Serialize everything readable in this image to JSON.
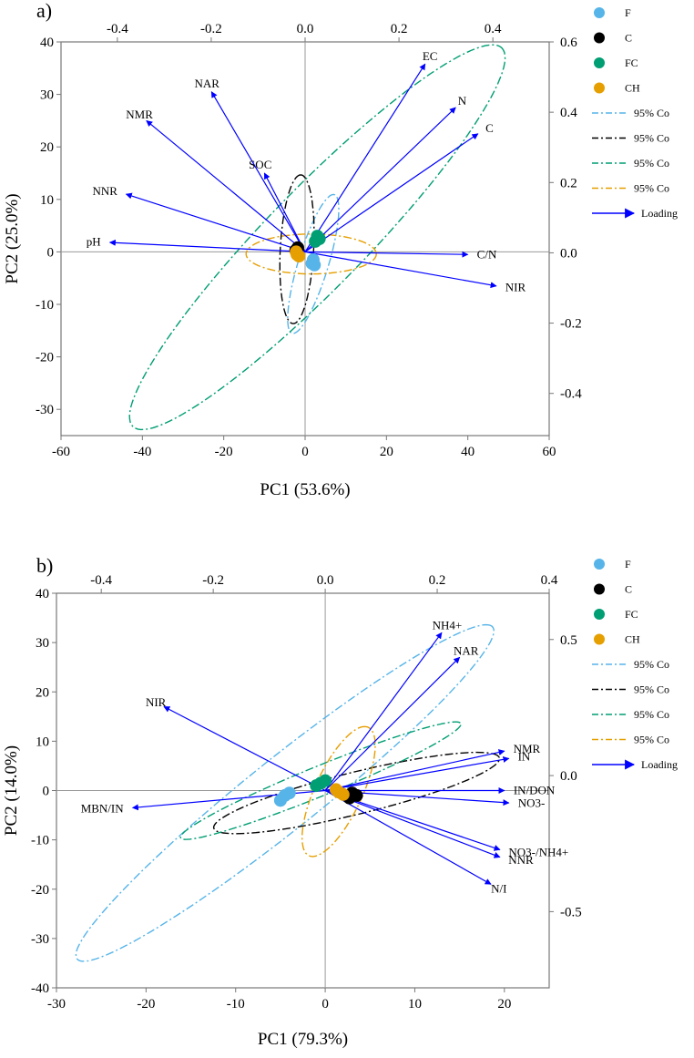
{
  "chart_data": [
    {
      "type": "scatter",
      "panel_label": "a)",
      "xlabel": "PC1 (53.6%)",
      "ylabel": "PC2 (25.0%)",
      "xlim": [
        -60,
        60
      ],
      "ylim": [
        -35,
        40
      ],
      "xticks": [
        -60,
        -40,
        -20,
        0,
        20,
        40,
        60
      ],
      "yticks": [
        -30,
        -20,
        -10,
        0,
        10,
        20,
        30,
        40
      ],
      "x2lim": [
        -0.52,
        0.52
      ],
      "x2ticks": [
        "-0.4",
        "-0.2",
        "0.0",
        "0.2",
        "0.4"
      ],
      "x2tick_values": [
        -0.4,
        -0.2,
        0.0,
        0.2,
        0.4
      ],
      "y2lim": [
        -0.52,
        0.6
      ],
      "y2ticks": [
        "-0.4",
        "-0.2",
        "0.0",
        "0.2",
        "0.4",
        "0.6"
      ],
      "y2tick_values": [
        -0.4,
        -0.2,
        0.0,
        0.2,
        0.4,
        0.6
      ],
      "legend": [
        {
          "label": "F",
          "kind": "dot",
          "color": "#56b4e9"
        },
        {
          "label": "C",
          "kind": "dot",
          "color": "#000000"
        },
        {
          "label": "FC",
          "kind": "dot",
          "color": "#009e73"
        },
        {
          "label": "CH",
          "kind": "dot",
          "color": "#e69f00"
        },
        {
          "label": "95% Co",
          "kind": "dashdot",
          "color": "#56b4e9"
        },
        {
          "label": "95% Co",
          "kind": "dashdot",
          "color": "#000000"
        },
        {
          "label": "95% Co",
          "kind": "dashdot",
          "color": "#009e73"
        },
        {
          "label": "95% Co",
          "kind": "dashdot",
          "color": "#e69f00"
        },
        {
          "label": "Loading",
          "kind": "arrow",
          "color": "#0000ff"
        }
      ],
      "groups": [
        {
          "name": "F",
          "color": "#56b4e9",
          "points": [
            [
              2,
              -1.5
            ],
            [
              2.3,
              -2.5
            ],
            [
              1.7,
              -2.2
            ]
          ]
        },
        {
          "name": "C",
          "color": "#000000",
          "points": [
            [
              -2,
              0.5
            ],
            [
              -2.3,
              0.3
            ],
            [
              -1.8,
              0.8
            ]
          ]
        },
        {
          "name": "FC",
          "color": "#009e73",
          "points": [
            [
              2.5,
              2
            ],
            [
              3,
              3
            ],
            [
              3.5,
              2.5
            ]
          ]
        },
        {
          "name": "CH",
          "color": "#e69f00",
          "points": [
            [
              -2,
              -0.5
            ],
            [
              -1.5,
              -0.8
            ],
            [
              -2.2,
              0
            ]
          ]
        }
      ],
      "ellipses": [
        {
          "group": "F",
          "color": "#56b4e9",
          "cx": 2,
          "cy": -2.3,
          "rx": 14.2,
          "ry": 3.6,
          "angle": 68
        },
        {
          "group": "C",
          "color": "#000000",
          "cx": -2,
          "cy": 0.5,
          "rx": 14.2,
          "ry": 4.1,
          "angle": 86
        },
        {
          "group": "FC",
          "color": "#009e73",
          "cx": 3,
          "cy": 2.8,
          "rx": 58,
          "ry": 10.5,
          "angle": 38
        },
        {
          "group": "CH",
          "color": "#e69f00",
          "cx": 1.5,
          "cy": -0.4,
          "rx": 16,
          "ry": 3.8,
          "angle": 0
        }
      ],
      "loadings": [
        {
          "label": "EC",
          "x": 29.5,
          "y": 35.8
        },
        {
          "label": "N",
          "x": 37,
          "y": 27.5
        },
        {
          "label": "C",
          "x": 42.5,
          "y": 22.5
        },
        {
          "label": "C/N",
          "x": 40,
          "y": -0.5
        },
        {
          "label": "NIR",
          "x": 47,
          "y": -6.5
        },
        {
          "label": "NAR",
          "x": -23,
          "y": 30.5
        },
        {
          "label": "NMR",
          "x": -39,
          "y": 25
        },
        {
          "label": "SOC",
          "x": -10,
          "y": 15
        },
        {
          "label": "NNR",
          "x": -44,
          "y": 11
        },
        {
          "label": "pH",
          "x": -48,
          "y": 1.8
        }
      ]
    },
    {
      "type": "scatter",
      "panel_label": "b)",
      "xlabel": "PC1 (79.3%)",
      "ylabel": "PC2 (14.0%)",
      "xlim": [
        -30,
        25
      ],
      "ylim": [
        -40,
        40
      ],
      "xticks": [
        -30,
        -20,
        -10,
        0,
        10,
        20
      ],
      "yticks": [
        -40,
        -30,
        -20,
        -10,
        0,
        10,
        20,
        30,
        40
      ],
      "x2lim": [
        -0.48,
        0.4
      ],
      "x2ticks": [
        "-0.4",
        "-0.2",
        "0.0",
        "0.2",
        "0.4"
      ],
      "x2tick_values": [
        -0.4,
        -0.2,
        0.0,
        0.2,
        0.4
      ],
      "y2lim": [
        -0.78,
        0.67
      ],
      "y2ticks": [
        "-0.5",
        "0.0",
        "0.5"
      ],
      "y2tick_values": [
        -0.5,
        0.0,
        0.5
      ],
      "legend": [
        {
          "label": "F",
          "kind": "dot",
          "color": "#56b4e9"
        },
        {
          "label": "C",
          "kind": "dot",
          "color": "#000000"
        },
        {
          "label": "FC",
          "kind": "dot",
          "color": "#009e73"
        },
        {
          "label": "CH",
          "kind": "dot",
          "color": "#e69f00"
        },
        {
          "label": "95% Co",
          "kind": "dashdot",
          "color": "#56b4e9"
        },
        {
          "label": "95% Co",
          "kind": "dashdot",
          "color": "#000000"
        },
        {
          "label": "95% Co",
          "kind": "dashdot",
          "color": "#009e73"
        },
        {
          "label": "95% Co",
          "kind": "dashdot",
          "color": "#e69f00"
        },
        {
          "label": "Loading",
          "kind": "arrow",
          "color": "#0000ff"
        }
      ],
      "groups": [
        {
          "name": "F",
          "color": "#56b4e9",
          "points": [
            [
              -4.5,
              -1
            ],
            [
              -4,
              -0.5
            ],
            [
              -5,
              -2
            ]
          ]
        },
        {
          "name": "C",
          "color": "#000000",
          "points": [
            [
              3.5,
              -1
            ],
            [
              3,
              -0.5
            ],
            [
              2.7,
              -1.5
            ]
          ]
        },
        {
          "name": "FC",
          "color": "#009e73",
          "points": [
            [
              -0.5,
              1.5
            ],
            [
              0,
              2
            ],
            [
              -1,
              1
            ]
          ]
        },
        {
          "name": "CH",
          "color": "#e69f00",
          "points": [
            [
              1.5,
              -0.3
            ],
            [
              2,
              -0.8
            ],
            [
              1.2,
              0.2
            ]
          ]
        }
      ],
      "ellipses": [
        {
          "group": "F",
          "color": "#56b4e9",
          "cx": -4.5,
          "cy": -0.5,
          "rx": 41,
          "ry": 5.2,
          "angle": 56
        },
        {
          "group": "C",
          "color": "#000000",
          "cx": 3.5,
          "cy": -0.5,
          "rx": 17.5,
          "ry": 4,
          "angle": 25
        },
        {
          "group": "FC",
          "color": "#009e73",
          "cx": -0.5,
          "cy": 2,
          "rx": 19.5,
          "ry": 2.6,
          "angle": 37
        },
        {
          "group": "CH",
          "color": "#e69f00",
          "cx": 1.5,
          "cy": -0.2,
          "rx": 13.5,
          "ry": 2.8,
          "angle": 77
        }
      ],
      "loadings": [
        {
          "label": "NH4+",
          "x": 13,
          "y": 32
        },
        {
          "label": "NAR",
          "x": 15,
          "y": 27
        },
        {
          "label": "NMR",
          "x": 20,
          "y": 8
        },
        {
          "label": "IN",
          "x": 20.5,
          "y": 6.5
        },
        {
          "label": "IN/DON",
          "x": 20,
          "y": 0
        },
        {
          "label": "NO3-",
          "x": 20.5,
          "y": -2.5
        },
        {
          "label": "NO3-/NH4+",
          "x": 19.5,
          "y": -12
        },
        {
          "label": "NNR",
          "x": 19.5,
          "y": -13.5
        },
        {
          "label": "N/I",
          "x": 18.5,
          "y": -19
        },
        {
          "label": "NIR",
          "x": -18,
          "y": 17
        },
        {
          "label": "MBN/IN",
          "x": -21.5,
          "y": -3.5
        }
      ]
    }
  ]
}
